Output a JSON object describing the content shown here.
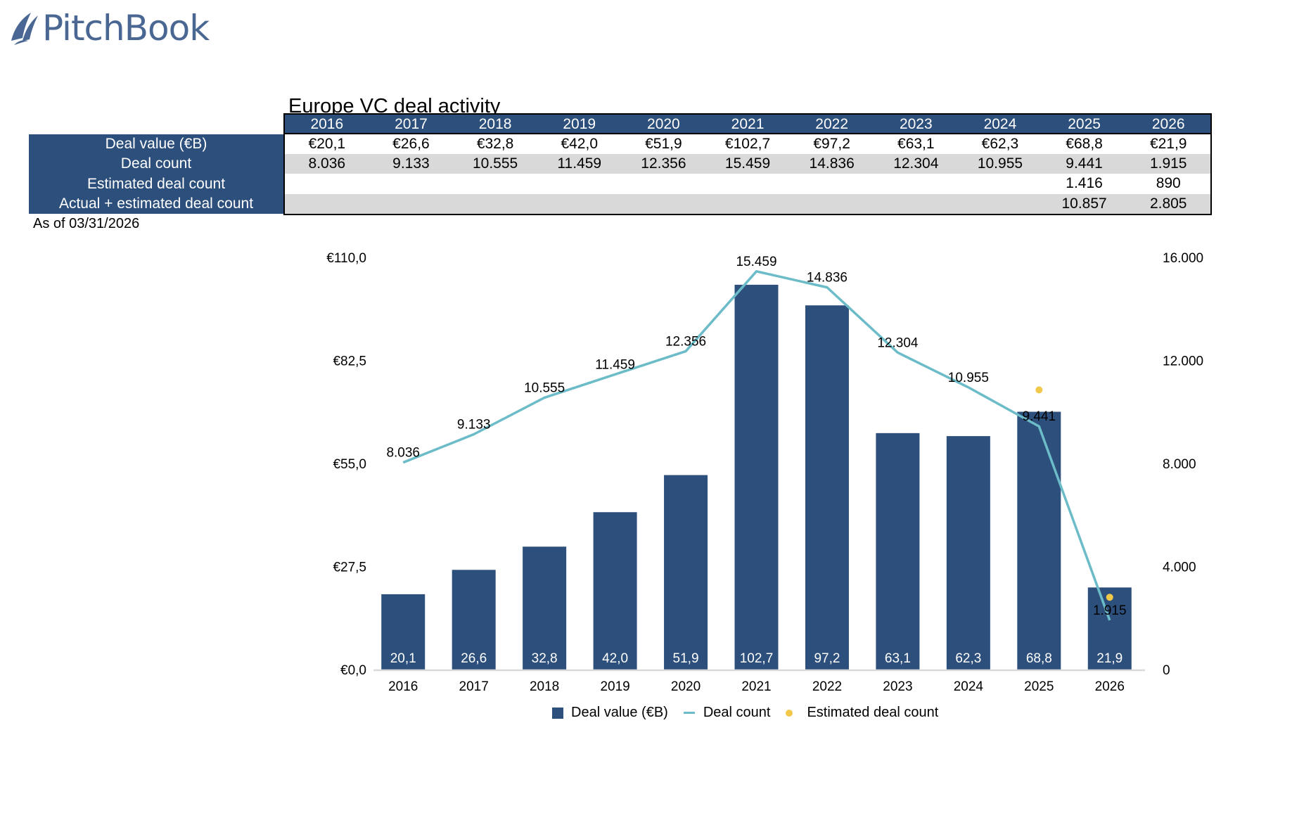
{
  "brand": {
    "name": "PitchBook",
    "color": "#4a6794"
  },
  "title": "Europe VC deal activity",
  "table": {
    "years": [
      "2016",
      "2017",
      "2018",
      "2019",
      "2020",
      "2021",
      "2022",
      "2023",
      "2024",
      "2025",
      "2026"
    ],
    "rows": [
      {
        "label": "Deal value (€B)",
        "values": [
          "€20,1",
          "€26,6",
          "€32,8",
          "€42,0",
          "€51,9",
          "€102,7",
          "€97,2",
          "€63,1",
          "€62,3",
          "€68,8",
          "€21,9"
        ]
      },
      {
        "label": "Deal count",
        "values": [
          "8.036",
          "9.133",
          "10.555",
          "11.459",
          "12.356",
          "15.459",
          "14.836",
          "12.304",
          "10.955",
          "9.441",
          "1.915"
        ]
      },
      {
        "label": "Estimated deal count",
        "values": [
          "",
          "",
          "",
          "",
          "",
          "",
          "",
          "",
          "",
          "1.416",
          "890"
        ]
      },
      {
        "label": "Actual + estimated deal count",
        "values": [
          "",
          "",
          "",
          "",
          "",
          "",
          "",
          "",
          "",
          "10.857",
          "2.805"
        ]
      }
    ]
  },
  "as_of": "As of 03/31/2026",
  "colors": {
    "bar": "#2d4f7c",
    "line": "#6bbcc8",
    "dot": "#f0c94a",
    "header": "#2d4f7c",
    "gray_row": "#d9d9d9",
    "axis": "#d9d9d9"
  },
  "chart_data": {
    "type": "bar",
    "title": "Europe VC deal activity",
    "categories": [
      "2016",
      "2017",
      "2018",
      "2019",
      "2020",
      "2021",
      "2022",
      "2023",
      "2024",
      "2025",
      "2026"
    ],
    "series": [
      {
        "name": "Deal value (€B)",
        "type": "bar",
        "axis": "left",
        "values": [
          20.1,
          26.6,
          32.8,
          42.0,
          51.9,
          102.7,
          97.2,
          63.1,
          62.3,
          68.8,
          21.9
        ],
        "labels": [
          "20,1",
          "26,6",
          "32,8",
          "42,0",
          "51,9",
          "102,7",
          "97,2",
          "63,1",
          "62,3",
          "68,8",
          "21,9"
        ]
      },
      {
        "name": "Deal count",
        "type": "line",
        "axis": "right",
        "values": [
          8036,
          9133,
          10555,
          11459,
          12356,
          15459,
          14836,
          12304,
          10955,
          9441,
          1915
        ],
        "labels": [
          "8.036",
          "9.133",
          "10.555",
          "11.459",
          "12.356",
          "15.459",
          "14.836",
          "12.304",
          "10.955",
          "9.441",
          "1.915"
        ]
      },
      {
        "name": "Estimated deal count",
        "type": "scatter",
        "axis": "right",
        "values": [
          null,
          null,
          null,
          null,
          null,
          null,
          null,
          null,
          null,
          10857,
          2805
        ]
      }
    ],
    "left_axis": {
      "min": 0,
      "max": 110,
      "ticks": [
        0,
        27.5,
        55,
        82.5,
        110
      ],
      "tick_labels": [
        "€0,0",
        "€27,5",
        "€55,0",
        "€82,5",
        "€110,0"
      ]
    },
    "right_axis": {
      "min": 0,
      "max": 16000,
      "ticks": [
        0,
        4000,
        8000,
        12000,
        16000
      ],
      "tick_labels": [
        "0",
        "4.000",
        "8.000",
        "12.000",
        "16.000"
      ]
    },
    "grid": false,
    "legend": {
      "position": "bottom",
      "entries": [
        "Deal value (€B)",
        "Deal count",
        "Estimated deal count"
      ]
    }
  }
}
